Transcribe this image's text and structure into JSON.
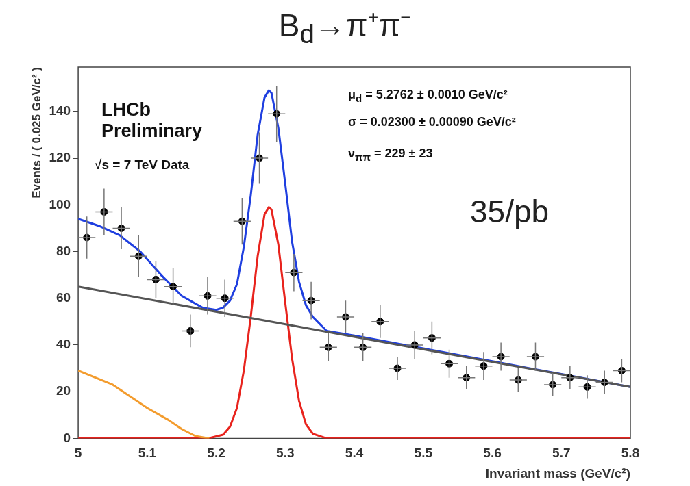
{
  "chart_data": {
    "type": "scatter",
    "title": "B$_{d}$→π⁺π⁻",
    "xlabel": "Invariant mass (GeV/c²)",
    "ylabel": "Events / ( 0.025 GeV/c² )",
    "xlim": [
      5,
      5.8
    ],
    "ylim": [
      0,
      159
    ],
    "xticks": [
      5,
      5.1,
      5.2,
      5.3,
      5.4,
      5.5,
      5.6,
      5.7,
      5.8
    ],
    "yticks": [
      0,
      20,
      40,
      60,
      80,
      100,
      120,
      140
    ],
    "grid": false,
    "legend": false,
    "annotations": [
      "LHCb Preliminary",
      "√s = 7 TeV Data",
      "μ$_{d}$ = 5.2762 ± 0.0010 GeV/c²",
      "σ = 0.02300 ± 0.00090 GeV/c²",
      "ν$_{ππ}$ = 229 ± 23",
      "35/pb"
    ],
    "series": [
      {
        "type": "line",
        "color": "#555555",
        "marker": "none",
        "x": [
          5,
          5.8
        ],
        "values": [
          65,
          22
        ]
      },
      {
        "type": "line",
        "color": "#f39c2e",
        "marker": "none",
        "x": [
          5,
          5.05,
          5.1,
          5.13,
          5.15,
          5.17,
          5.19
        ],
        "values": [
          29,
          23,
          13,
          8,
          4,
          1,
          0
        ]
      },
      {
        "type": "line",
        "color": "#e8231d",
        "marker": "none",
        "x": [
          5,
          5.19,
          5.21,
          5.22,
          5.23,
          5.24,
          5.25,
          5.26,
          5.27,
          5.2762,
          5.28,
          5.29,
          5.3,
          5.31,
          5.32,
          5.33,
          5.34,
          5.36,
          5.8
        ],
        "values": [
          0,
          0.1,
          1.6,
          5,
          13,
          29,
          52,
          78,
          96,
          99,
          98,
          83,
          58,
          34,
          16,
          6,
          2,
          0,
          0
        ]
      },
      {
        "type": "line",
        "color": "#1f3fe0",
        "marker": "none",
        "x": [
          5,
          5.03,
          5.06,
          5.09,
          5.12,
          5.15,
          5.18,
          5.2,
          5.21,
          5.22,
          5.23,
          5.24,
          5.25,
          5.26,
          5.27,
          5.2762,
          5.28,
          5.29,
          5.3,
          5.31,
          5.32,
          5.33,
          5.34,
          5.36,
          5.4,
          5.5,
          5.6,
          5.7,
          5.8
        ],
        "values": [
          94,
          91,
          87,
          80,
          70,
          61,
          56,
          55,
          56,
          59,
          66,
          82,
          104,
          130,
          146,
          149,
          148,
          133,
          109,
          84,
          67,
          57,
          52,
          46,
          44,
          38.5,
          33,
          27.5,
          22
        ]
      },
      {
        "color": "#000000",
        "marker": "circle",
        "x": [
          5.0125,
          5.0375,
          5.0625,
          5.0875,
          5.1125,
          5.1375,
          5.1625,
          5.1875,
          5.2125,
          5.2375,
          5.2625,
          5.2875,
          5.3125,
          5.3375,
          5.3625,
          5.3875,
          5.4125,
          5.4375,
          5.4625,
          5.4875,
          5.5125,
          5.5375,
          5.5625,
          5.5875,
          5.6125,
          5.6375,
          5.6625,
          5.6875,
          5.7125,
          5.7375,
          5.7625,
          5.7875
        ],
        "values": [
          86,
          97,
          90,
          78,
          68,
          65,
          46,
          61,
          60,
          93,
          120,
          139,
          71,
          59,
          39,
          52,
          39,
          50,
          30,
          40,
          43,
          32,
          26,
          31,
          35,
          25,
          35,
          23,
          26,
          22,
          24,
          29
        ],
        "errors": [
          9,
          10,
          9,
          9,
          8,
          8,
          7,
          8,
          8,
          10,
          11,
          12,
          8,
          8,
          6,
          7,
          6,
          7,
          5,
          6,
          7,
          6,
          5,
          6,
          6,
          5,
          6,
          5,
          5,
          5,
          5,
          5
        ],
        "xerrors": [
          0.0125,
          0.0125,
          0.0125,
          0.0125,
          0.0125,
          0.0125,
          0.0125,
          0.0125,
          0.0125,
          0.0125,
          0.0125,
          0.0125,
          0.0125,
          0.0125,
          0.0125,
          0.0125,
          0.0125,
          0.0125,
          0.0125,
          0.0125,
          0.0125,
          0.0125,
          0.0125,
          0.0125,
          0.0125,
          0.0125,
          0.0125,
          0.0125,
          0.0125,
          0.0125,
          0.0125,
          0.0125
        ]
      }
    ]
  }
}
